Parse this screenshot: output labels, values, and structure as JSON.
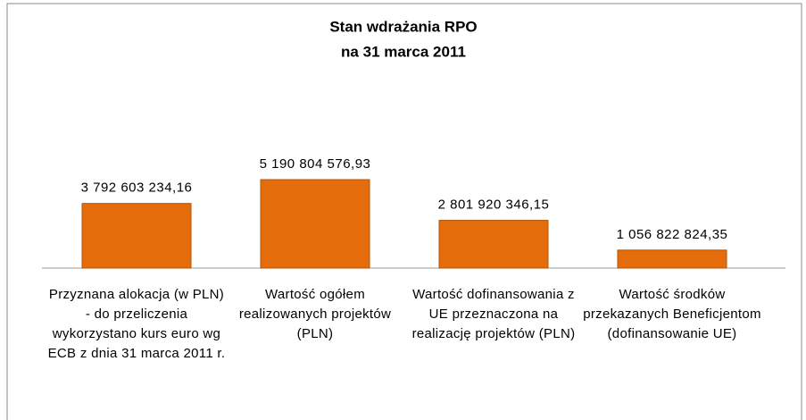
{
  "chart_data": {
    "type": "bar",
    "title": "Stan wdrażania RPO",
    "subtitle": "na  31 marca 2011",
    "categories": [
      "Przyznana alokacja (w PLN) - do przeliczenia wykorzystano kurs euro wg ECB z dnia 31 marca 2011 r.",
      "Wartość ogółem realizowanych projektów (PLN)",
      "Wartość dofinansowania z UE przeznaczona na realizację projektów (PLN)",
      "Wartość środków przekazanych Beneficjentom (dofinansowanie UE)"
    ],
    "values": [
      3792603234.16,
      5190804576.93,
      2801920346.15,
      1056822824.35
    ],
    "value_labels": [
      "3 792 603 234,16",
      "5 190 804 576,93",
      "2 801 920 346,15",
      "1 056 822 824,35"
    ],
    "color": "#e46c0a"
  }
}
